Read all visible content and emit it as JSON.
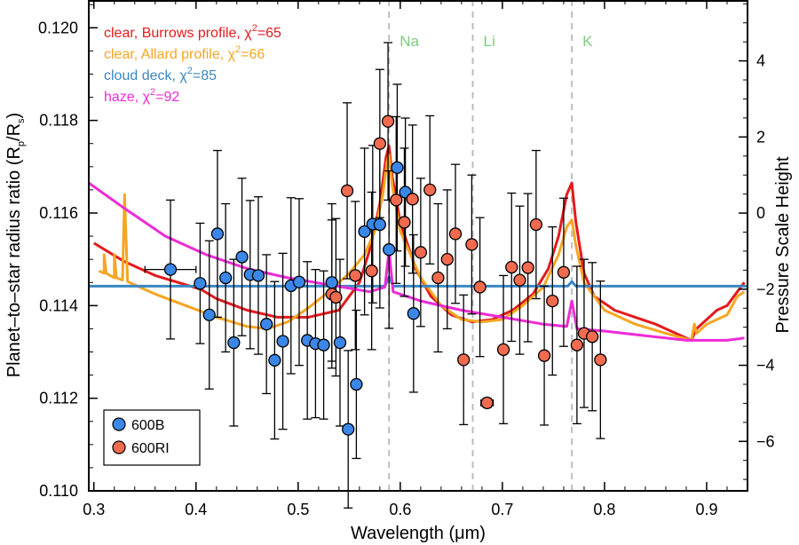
{
  "chart_data": {
    "type": "scatter",
    "xlabel": "Wavelength (μm)",
    "ylabel": "Planet–to–star radius ratio (R_p/R_s)",
    "ylabel_right": "Pressure Scale Height",
    "xlim": [
      0.295,
      0.94
    ],
    "ylim": [
      0.11,
      0.1206
    ],
    "y2lim": [
      -7.3,
      5.6
    ],
    "x_ticks": [
      0.3,
      0.4,
      0.5,
      0.6,
      0.7,
      0.8,
      0.9
    ],
    "x_tick_labels": [
      "0.3",
      "0.4",
      "0.5",
      "0.6",
      "0.7",
      "0.8",
      "0.9"
    ],
    "y_ticks": [
      0.11,
      0.112,
      0.114,
      0.116,
      0.118,
      0.12
    ],
    "y_tick_labels": [
      "0.110",
      "0.112",
      "0.114",
      "0.116",
      "0.118",
      "0.120"
    ],
    "y2_ticks": [
      -6,
      -4,
      -2,
      0,
      2,
      4
    ],
    "y2_tick_labels": [
      "−6",
      "−4",
      "−2",
      "0",
      "2",
      "4"
    ],
    "vertical_lines": [
      {
        "x": 0.589,
        "label": "Na"
      },
      {
        "x": 0.671,
        "label": "Li"
      },
      {
        "x": 0.768,
        "label": "K"
      }
    ],
    "model_legend": [
      {
        "prefix": "clear, Burrows profile, ",
        "chi2": "=65",
        "color": "#e41a1c"
      },
      {
        "prefix": "clear, Allard profile, ",
        "chi2": "=66",
        "color": "#f5a623"
      },
      {
        "prefix": "cloud deck, ",
        "chi2": "=85",
        "color": "#3a87c2"
      },
      {
        "prefix": "haze, ",
        "chi2": "=92",
        "color": "#ee2bd6"
      }
    ],
    "chi_symbol": "χ",
    "chi_superscript": "2",
    "models": [
      {
        "name": "clear, Burrows profile",
        "color": "#e41a1c",
        "points": [
          [
            0.3,
            0.11535
          ],
          [
            0.33,
            0.11495
          ],
          [
            0.36,
            0.11465
          ],
          [
            0.39,
            0.11445
          ],
          [
            0.405,
            0.11435
          ],
          [
            0.42,
            0.11415
          ],
          [
            0.45,
            0.1139
          ],
          [
            0.48,
            0.11375
          ],
          [
            0.51,
            0.11375
          ],
          [
            0.54,
            0.1139
          ],
          [
            0.56,
            0.1145
          ],
          [
            0.57,
            0.1152
          ],
          [
            0.58,
            0.1162
          ],
          [
            0.586,
            0.1172
          ],
          [
            0.589,
            0.11745
          ],
          [
            0.592,
            0.1168
          ],
          [
            0.6,
            0.1158
          ],
          [
            0.615,
            0.1148
          ],
          [
            0.63,
            0.1142
          ],
          [
            0.65,
            0.1138
          ],
          [
            0.67,
            0.11365
          ],
          [
            0.69,
            0.1137
          ],
          [
            0.71,
            0.1139
          ],
          [
            0.73,
            0.11425
          ],
          [
            0.745,
            0.1148
          ],
          [
            0.755,
            0.1155
          ],
          [
            0.763,
            0.1164
          ],
          [
            0.768,
            0.11665
          ],
          [
            0.772,
            0.1158
          ],
          [
            0.78,
            0.1147
          ],
          [
            0.79,
            0.1142
          ],
          [
            0.81,
            0.1139
          ],
          [
            0.83,
            0.11375
          ],
          [
            0.85,
            0.1136
          ],
          [
            0.87,
            0.1134
          ],
          [
            0.885,
            0.11325
          ],
          [
            0.89,
            0.1135
          ],
          [
            0.9,
            0.1137
          ],
          [
            0.91,
            0.1139
          ],
          [
            0.92,
            0.114
          ],
          [
            0.93,
            0.1143
          ],
          [
            0.937,
            0.1145
          ]
        ]
      },
      {
        "name": "clear, Allard profile",
        "color": "#f5a623",
        "points": [
          [
            0.305,
            0.11475
          ],
          [
            0.31,
            0.1147
          ],
          [
            0.31,
            0.1151
          ],
          [
            0.312,
            0.1147
          ],
          [
            0.32,
            0.1146
          ],
          [
            0.32,
            0.1151
          ],
          [
            0.322,
            0.1146
          ],
          [
            0.328,
            0.11455
          ],
          [
            0.33,
            0.1164
          ],
          [
            0.333,
            0.11452
          ],
          [
            0.36,
            0.11425
          ],
          [
            0.39,
            0.114
          ],
          [
            0.42,
            0.11375
          ],
          [
            0.45,
            0.11355
          ],
          [
            0.47,
            0.1135
          ],
          [
            0.49,
            0.11365
          ],
          [
            0.51,
            0.11395
          ],
          [
            0.53,
            0.1143
          ],
          [
            0.55,
            0.1147
          ],
          [
            0.565,
            0.1151
          ],
          [
            0.575,
            0.1156
          ],
          [
            0.583,
            0.1164
          ],
          [
            0.587,
            0.1171
          ],
          [
            0.589,
            0.11725
          ],
          [
            0.592,
            0.1166
          ],
          [
            0.6,
            0.1156
          ],
          [
            0.62,
            0.1146
          ],
          [
            0.64,
            0.114
          ],
          [
            0.66,
            0.1137
          ],
          [
            0.68,
            0.11365
          ],
          [
            0.7,
            0.1137
          ],
          [
            0.72,
            0.114
          ],
          [
            0.74,
            0.1144
          ],
          [
            0.755,
            0.1151
          ],
          [
            0.763,
            0.1157
          ],
          [
            0.768,
            0.11585
          ],
          [
            0.772,
            0.1153
          ],
          [
            0.78,
            0.1145
          ],
          [
            0.8,
            0.1139
          ],
          [
            0.83,
            0.1136
          ],
          [
            0.86,
            0.1134
          ],
          [
            0.885,
            0.11325
          ],
          [
            0.888,
            0.1136
          ],
          [
            0.89,
            0.1134
          ],
          [
            0.9,
            0.1136
          ],
          [
            0.91,
            0.1137
          ],
          [
            0.92,
            0.1138
          ],
          [
            0.93,
            0.1142
          ],
          [
            0.937,
            0.1143
          ]
        ]
      },
      {
        "name": "cloud deck",
        "color": "#3a87c2",
        "points": [
          [
            0.295,
            0.11442
          ],
          [
            0.585,
            0.11442
          ],
          [
            0.589,
            0.11462
          ],
          [
            0.593,
            0.11442
          ],
          [
            0.764,
            0.11442
          ],
          [
            0.768,
            0.11452
          ],
          [
            0.772,
            0.11442
          ],
          [
            0.94,
            0.11442
          ]
        ]
      },
      {
        "name": "haze",
        "color": "#ee2bd6",
        "points": [
          [
            0.295,
            0.11665
          ],
          [
            0.33,
            0.1161
          ],
          [
            0.37,
            0.1155
          ],
          [
            0.41,
            0.1151
          ],
          [
            0.45,
            0.1148
          ],
          [
            0.49,
            0.1146
          ],
          [
            0.53,
            0.11445
          ],
          [
            0.57,
            0.1143
          ],
          [
            0.585,
            0.1144
          ],
          [
            0.589,
            0.1152
          ],
          [
            0.593,
            0.1143
          ],
          [
            0.62,
            0.1141
          ],
          [
            0.66,
            0.1139
          ],
          [
            0.7,
            0.11375
          ],
          [
            0.74,
            0.1136
          ],
          [
            0.763,
            0.11355
          ],
          [
            0.768,
            0.1141
          ],
          [
            0.773,
            0.1135
          ],
          [
            0.8,
            0.11345
          ],
          [
            0.84,
            0.11335
          ],
          [
            0.88,
            0.11325
          ],
          [
            0.92,
            0.11325
          ],
          [
            0.937,
            0.1133
          ]
        ]
      }
    ],
    "data_series": [
      {
        "name": "600B",
        "color": "#3a87e8",
        "points": [
          {
            "x": 0.375,
            "y": 0.11478,
            "yerr": 0.0015,
            "xerr": 0.025
          },
          {
            "x": 0.404,
            "y": 0.11448,
            "yerr": 0.0013
          },
          {
            "x": 0.413,
            "y": 0.1138,
            "yerr": 0.0016
          },
          {
            "x": 0.421,
            "y": 0.11555,
            "yerr": 0.0018
          },
          {
            "x": 0.429,
            "y": 0.1146,
            "yerr": 0.0016
          },
          {
            "x": 0.437,
            "y": 0.1132,
            "yerr": 0.0018
          },
          {
            "x": 0.445,
            "y": 0.11505,
            "yerr": 0.0017
          },
          {
            "x": 0.453,
            "y": 0.11467,
            "yerr": 0.0016
          },
          {
            "x": 0.461,
            "y": 0.11465,
            "yerr": 0.0017
          },
          {
            "x": 0.469,
            "y": 0.1136,
            "yerr": 0.0015
          },
          {
            "x": 0.477,
            "y": 0.11282,
            "yerr": 0.0017
          },
          {
            "x": 0.485,
            "y": 0.11323,
            "yerr": 0.0019
          },
          {
            "x": 0.493,
            "y": 0.11443,
            "yerr": 0.0019
          },
          {
            "x": 0.501,
            "y": 0.11451,
            "yerr": 0.0018
          },
          {
            "x": 0.509,
            "y": 0.11325,
            "yerr": 0.0017
          },
          {
            "x": 0.517,
            "y": 0.11318,
            "yerr": 0.0016
          },
          {
            "x": 0.525,
            "y": 0.11315,
            "yerr": 0.0016
          },
          {
            "x": 0.533,
            "y": 0.1145,
            "yerr": 0.0017
          },
          {
            "x": 0.541,
            "y": 0.1132,
            "yerr": 0.0018
          },
          {
            "x": 0.549,
            "y": 0.11133,
            "yerr": 0.0017
          },
          {
            "x": 0.557,
            "y": 0.1123,
            "yerr": 0.0016
          },
          {
            "x": 0.565,
            "y": 0.1156,
            "yerr": 0.0018
          },
          {
            "x": 0.573,
            "y": 0.11576,
            "yerr": 0.0017
          },
          {
            "x": 0.58,
            "y": 0.11575,
            "yerr": 0.0018
          },
          {
            "x": 0.589,
            "y": 0.11521,
            "yerr": 0.0017
          },
          {
            "x": 0.597,
            "y": 0.11698,
            "yerr": 0.0018
          },
          {
            "x": 0.605,
            "y": 0.11645,
            "yerr": 0.0016
          },
          {
            "x": 0.613,
            "y": 0.11383,
            "yerr": 0.0017
          }
        ]
      },
      {
        "name": "600RI",
        "color": "#f26b4f",
        "points": [
          {
            "x": 0.533,
            "y": 0.11425,
            "yerr": 0.0016
          },
          {
            "x": 0.537,
            "y": 0.11418,
            "yerr": 0.0017
          },
          {
            "x": 0.548,
            "y": 0.11648,
            "yerr": 0.0019
          },
          {
            "x": 0.556,
            "y": 0.11465,
            "yerr": 0.0016
          },
          {
            "x": 0.572,
            "y": 0.11475,
            "yerr": 0.0017
          },
          {
            "x": 0.58,
            "y": 0.1175,
            "yerr": 0.0016
          },
          {
            "x": 0.588,
            "y": 0.11798,
            "yerr": 0.0017
          },
          {
            "x": 0.596,
            "y": 0.11628,
            "yerr": 0.0018
          },
          {
            "x": 0.604,
            "y": 0.1158,
            "yerr": 0.0016
          },
          {
            "x": 0.612,
            "y": 0.1163,
            "yerr": 0.0016
          },
          {
            "x": 0.62,
            "y": 0.11515,
            "yerr": 0.0016
          },
          {
            "x": 0.629,
            "y": 0.1165,
            "yerr": 0.0016
          },
          {
            "x": 0.637,
            "y": 0.1146,
            "yerr": 0.0016
          },
          {
            "x": 0.646,
            "y": 0.115,
            "yerr": 0.0015
          },
          {
            "x": 0.654,
            "y": 0.11555,
            "yerr": 0.0015
          },
          {
            "x": 0.662,
            "y": 0.11283,
            "yerr": 0.0014
          },
          {
            "x": 0.67,
            "y": 0.11532,
            "yerr": 0.0015
          },
          {
            "x": 0.678,
            "y": 0.1144,
            "yerr": 0.0015
          },
          {
            "x": 0.685,
            "y": 0.1119,
            "yerr": 0.0001,
            "xerr": 0.006
          },
          {
            "x": 0.701,
            "y": 0.11305,
            "yerr": 0.0016
          },
          {
            "x": 0.709,
            "y": 0.11483,
            "yerr": 0.0016
          },
          {
            "x": 0.717,
            "y": 0.11455,
            "yerr": 0.0016
          },
          {
            "x": 0.725,
            "y": 0.11482,
            "yerr": 0.0016
          },
          {
            "x": 0.733,
            "y": 0.11575,
            "yerr": 0.0016
          },
          {
            "x": 0.741,
            "y": 0.11292,
            "yerr": 0.0015
          },
          {
            "x": 0.749,
            "y": 0.1141,
            "yerr": 0.0016
          },
          {
            "x": 0.76,
            "y": 0.11472,
            "yerr": 0.0016
          },
          {
            "x": 0.773,
            "y": 0.11315,
            "yerr": 0.0017
          },
          {
            "x": 0.78,
            "y": 0.1134,
            "yerr": 0.0016
          },
          {
            "x": 0.788,
            "y": 0.11333,
            "yerr": 0.0016
          },
          {
            "x": 0.796,
            "y": 0.11283,
            "yerr": 0.0017
          }
        ]
      }
    ],
    "data_legend": [
      {
        "label": "600B",
        "color": "#3a87e8"
      },
      {
        "label": "600RI",
        "color": "#f26b4f"
      }
    ]
  }
}
